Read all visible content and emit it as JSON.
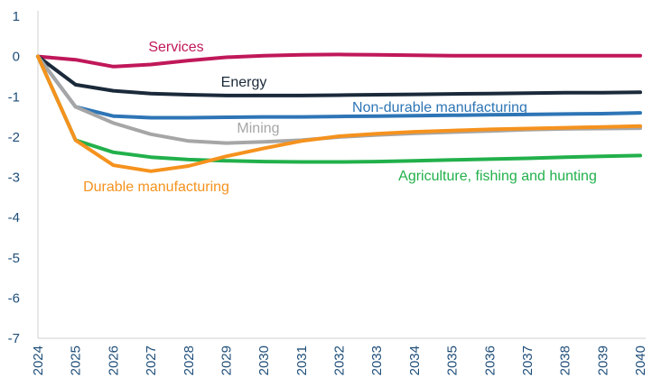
{
  "chart_data": {
    "type": "line",
    "x": [
      2024,
      2025,
      2026,
      2027,
      2028,
      2029,
      2030,
      2031,
      2032,
      2033,
      2034,
      2035,
      2036,
      2037,
      2038,
      2039,
      2040
    ],
    "ylim": [
      -7,
      1
    ],
    "yticks": [
      "1",
      "0",
      "-1",
      "-2",
      "-3",
      "-4",
      "-5",
      "-6",
      "-7"
    ],
    "xticks": [
      "2024",
      "2025",
      "2026",
      "2027",
      "2028",
      "2029",
      "2030",
      "2031",
      "2032",
      "2033",
      "2034",
      "2035",
      "2036",
      "2037",
      "2038",
      "2039",
      "2040"
    ],
    "grid": false,
    "series": [
      {
        "name": "Services",
        "color": "#c0185a",
        "values": [
          0,
          -0.08,
          -0.25,
          -0.2,
          -0.1,
          -0.02,
          0.02,
          0.04,
          0.05,
          0.04,
          0.03,
          0.02,
          0.02,
          0.02,
          0.02,
          0.02,
          0.02
        ]
      },
      {
        "name": "Energy",
        "color": "#1b2a3a",
        "values": [
          0,
          -0.7,
          -0.85,
          -0.92,
          -0.95,
          -0.97,
          -0.97,
          -0.97,
          -0.96,
          -0.95,
          -0.94,
          -0.93,
          -0.92,
          -0.91,
          -0.9,
          -0.9,
          -0.89
        ]
      },
      {
        "name": "Non-durable manufacturing",
        "color": "#2e75b6",
        "values": [
          0,
          -1.25,
          -1.48,
          -1.52,
          -1.52,
          -1.51,
          -1.5,
          -1.5,
          -1.49,
          -1.48,
          -1.47,
          -1.46,
          -1.45,
          -1.44,
          -1.43,
          -1.42,
          -1.4
        ]
      },
      {
        "name": "Mining",
        "color": "#a6a6a6",
        "values": [
          0,
          -1.25,
          -1.65,
          -1.93,
          -2.1,
          -2.15,
          -2.12,
          -2.08,
          -2.0,
          -1.95,
          -1.91,
          -1.88,
          -1.85,
          -1.82,
          -1.8,
          -1.79,
          -1.78
        ]
      },
      {
        "name": "Agriculture, fishing and hunting",
        "color": "#22b04b",
        "values": [
          0,
          -2.08,
          -2.38,
          -2.5,
          -2.56,
          -2.59,
          -2.61,
          -2.62,
          -2.62,
          -2.61,
          -2.59,
          -2.57,
          -2.55,
          -2.53,
          -2.5,
          -2.48,
          -2.46
        ]
      },
      {
        "name": "Durable manufacturing",
        "color": "#f5921e",
        "values": [
          0,
          -2.08,
          -2.7,
          -2.85,
          -2.72,
          -2.48,
          -2.28,
          -2.1,
          -1.98,
          -1.92,
          -1.87,
          -1.84,
          -1.81,
          -1.79,
          -1.77,
          -1.75,
          -1.73
        ]
      }
    ],
    "labels": {
      "Services": "Services",
      "Energy": "Energy",
      "Non-durable manufacturing": "Non-durable manufacturing",
      "Mining": "Mining",
      "Agriculture, fishing and hunting": "Agriculture, fishing and hunting",
      "Durable manufacturing": "Durable manufacturing"
    }
  }
}
